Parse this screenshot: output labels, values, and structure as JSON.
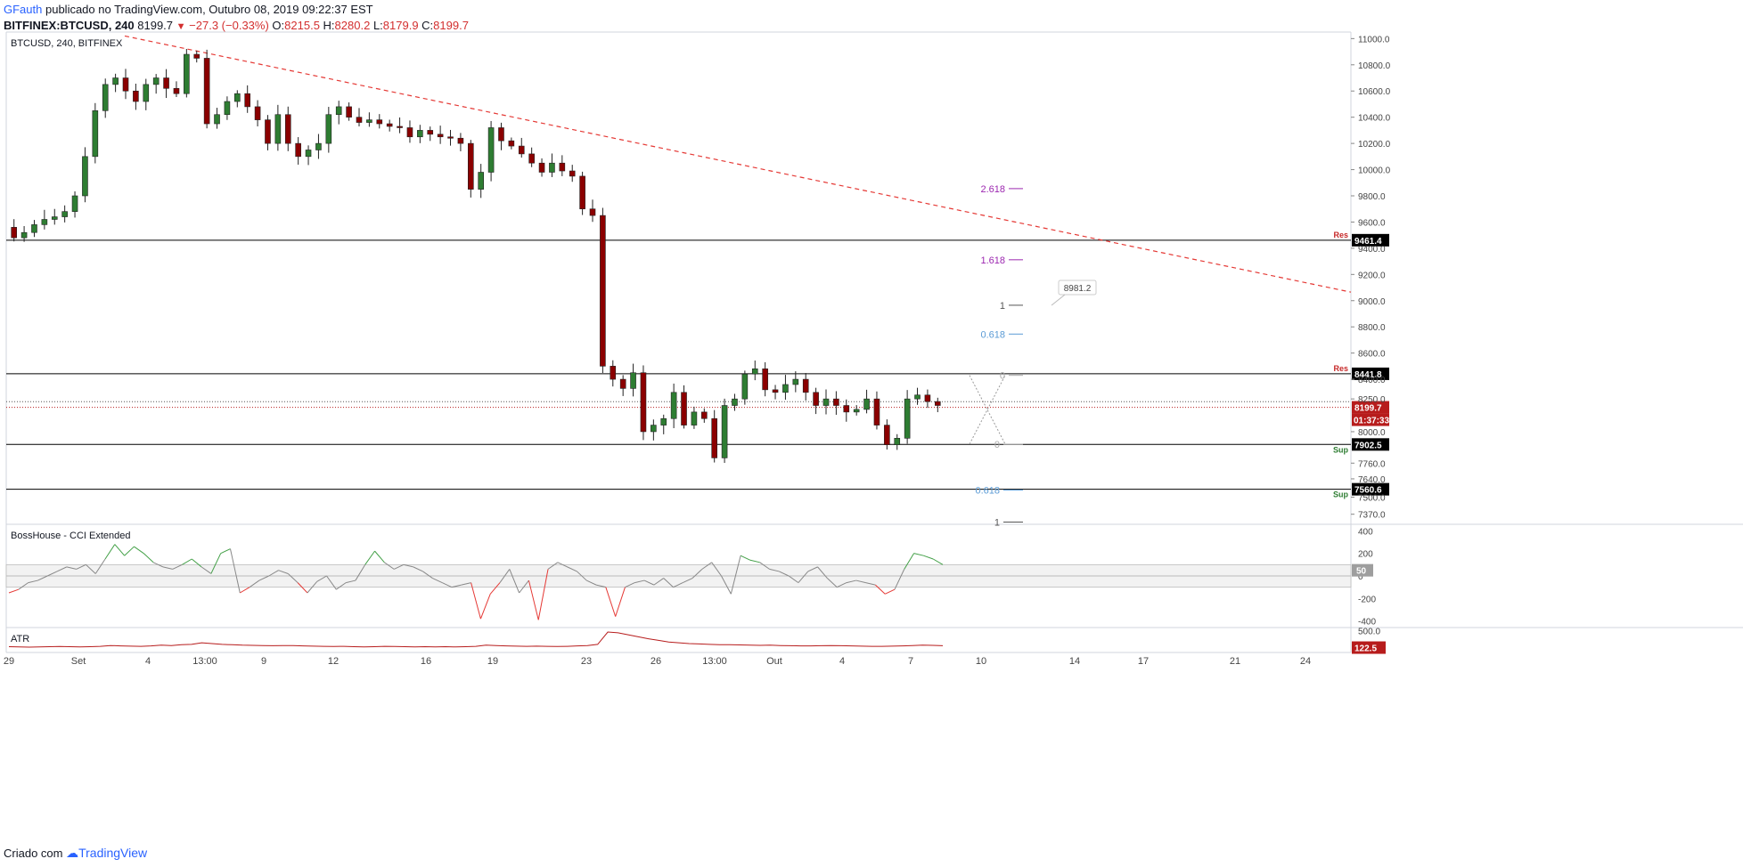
{
  "header": {
    "author": "GFauth",
    "published_text": "publicado no TradingView.com, Outubro 08, 2019 09:22:37 EST",
    "symbol_line": "BITFINEX:BTCUSD, 240",
    "last_price": "8199.7",
    "change": "−27.3 (−0.33%)",
    "o_label": "O:",
    "o": "8215.5",
    "h_label": "H:",
    "h": "8280.2",
    "l_label": "L:",
    "l": "8179.9",
    "c_label": "C:",
    "c": "8199.7"
  },
  "footer": {
    "created_with": "Criado com",
    "brand": "TradingView"
  },
  "colors": {
    "up": "#2e7d32",
    "down": "#8b0000",
    "grid": "#d1d4dc",
    "trendline": "#e53935",
    "fib_ext": "#9c27b0",
    "fib_ret": "#5b9bd5",
    "badge": "#000000",
    "price_badge": "#b71c1c",
    "cci_up": "#43a047",
    "cci_down": "#e53935",
    "cci_mid": "#888888",
    "atr": "#b71c1c",
    "sup": "#2e7d32"
  },
  "chart_data": [
    {
      "type": "candlestick",
      "pane_title": "BTCUSD, 240, BITFINEX",
      "ylim": [
        7300,
        11050
      ],
      "y_ticks": [
        "11000.0",
        "10800.0",
        "10600.0",
        "10400.0",
        "10200.0",
        "10000.0",
        "9800.0",
        "9600.0",
        "9400.0",
        "9200.0",
        "9000.0",
        "8800.0",
        "8600.0",
        "8400.0",
        "8250.0",
        "8000.0",
        "7760.0",
        "7640.0",
        "7500.0",
        "7370.0"
      ],
      "x_ticks": [
        "29",
        "Set",
        "4",
        "13:00",
        "9",
        "12",
        "16",
        "19",
        "23",
        "26",
        "13:00",
        "Out",
        "4",
        "7",
        "10",
        "14",
        "17",
        "21",
        "24"
      ],
      "price_path": [
        9560,
        9480,
        9520,
        9580,
        9620,
        9640,
        9680,
        9800,
        10100,
        10450,
        10650,
        10700,
        10600,
        10520,
        10650,
        10700,
        10620,
        10580,
        10880,
        10850,
        10350,
        10420,
        10520,
        10580,
        10480,
        10380,
        10200,
        10420,
        10200,
        10100,
        10150,
        10200,
        10420,
        10480,
        10400,
        10360,
        10380,
        10350,
        10330,
        10320,
        10250,
        10300,
        10270,
        10250,
        10240,
        10200,
        9850,
        9980,
        10320,
        10220,
        10180,
        10120,
        10050,
        9980,
        10050,
        9990,
        9950,
        9700,
        9650,
        8500,
        8400,
        8330,
        8450,
        8000,
        8050,
        8100,
        8300,
        8050,
        8150,
        8100,
        7800,
        8200,
        8250,
        8440,
        8480,
        8320,
        8300,
        8360,
        8400,
        8300,
        8200,
        8250,
        8200,
        8150,
        8170,
        8250,
        8050,
        7900,
        7950,
        8250,
        8280,
        8230,
        8200
      ],
      "levels": [
        {
          "value": "9461.4",
          "tag": "Res"
        },
        {
          "value": "8441.8",
          "tag": "Res"
        },
        {
          "value": "7902.5",
          "tag": "Sup"
        },
        {
          "value": "7560.6",
          "tag": "Sup"
        }
      ],
      "current_price": "8199.7",
      "countdown": "01:37:33",
      "fib_labels": [
        "2.618",
        "1.618",
        "1",
        "0.618",
        "0",
        "0",
        "0.618",
        "1"
      ],
      "fib_values": [
        9855,
        9312,
        8965,
        8745,
        8430,
        7905,
        7555,
        7310
      ],
      "target_label": "8981.2",
      "trendline": {
        "from_date": "Set 1",
        "from_price": 11020,
        "to_date": "Out 22",
        "to_price": 9065
      }
    },
    {
      "type": "line",
      "pane_title": "BossHouse - CCI Extended",
      "ylim": [
        -450,
        450
      ],
      "y_ticks": [
        "400",
        "200",
        "0",
        "-200",
        "-400"
      ],
      "band": [
        -100,
        100
      ],
      "current_label": "50",
      "values": [
        -150,
        -120,
        -60,
        -40,
        0,
        40,
        80,
        60,
        100,
        20,
        150,
        280,
        180,
        260,
        200,
        120,
        80,
        60,
        100,
        150,
        80,
        20,
        200,
        240,
        -150,
        -100,
        -40,
        0,
        50,
        20,
        -60,
        -150,
        -50,
        0,
        -120,
        -60,
        -40,
        100,
        220,
        120,
        60,
        100,
        80,
        40,
        -20,
        -60,
        -100,
        -80,
        -60,
        -380,
        -160,
        -60,
        60,
        -150,
        -40,
        -390,
        60,
        120,
        80,
        40,
        -40,
        -80,
        -100,
        -360,
        -100,
        -60,
        -40,
        -80,
        -20,
        -100,
        -60,
        -20,
        60,
        120,
        0,
        -160,
        180,
        140,
        120,
        60,
        40,
        0,
        -60,
        40,
        80,
        -20,
        -100,
        -60,
        -40,
        -60,
        -80,
        -160,
        -120,
        60,
        200,
        180,
        150,
        100
      ]
    },
    {
      "type": "line",
      "pane_title": "ATR",
      "ylim": [
        0,
        560
      ],
      "y_ticks": [
        "500.0"
      ],
      "current_label": "122.5",
      "values": [
        100,
        95,
        90,
        95,
        100,
        105,
        100,
        95,
        100,
        110,
        130,
        120,
        115,
        110,
        120,
        140,
        130,
        150,
        160,
        200,
        180,
        160,
        150,
        140,
        135,
        130,
        125,
        130,
        130,
        120,
        115,
        110,
        105,
        110,
        100,
        95,
        100,
        110,
        105,
        100,
        95,
        100,
        95,
        100,
        95,
        100,
        110,
        140,
        130,
        120,
        115,
        110,
        115,
        110,
        105,
        110,
        120,
        130,
        160,
        470,
        450,
        400,
        350,
        300,
        260,
        220,
        200,
        180,
        170,
        160,
        150,
        150,
        145,
        140,
        135,
        140,
        130,
        125,
        120,
        120,
        125,
        130,
        125,
        120,
        115,
        110,
        110,
        115,
        120,
        130,
        140,
        135,
        125
      ]
    }
  ]
}
